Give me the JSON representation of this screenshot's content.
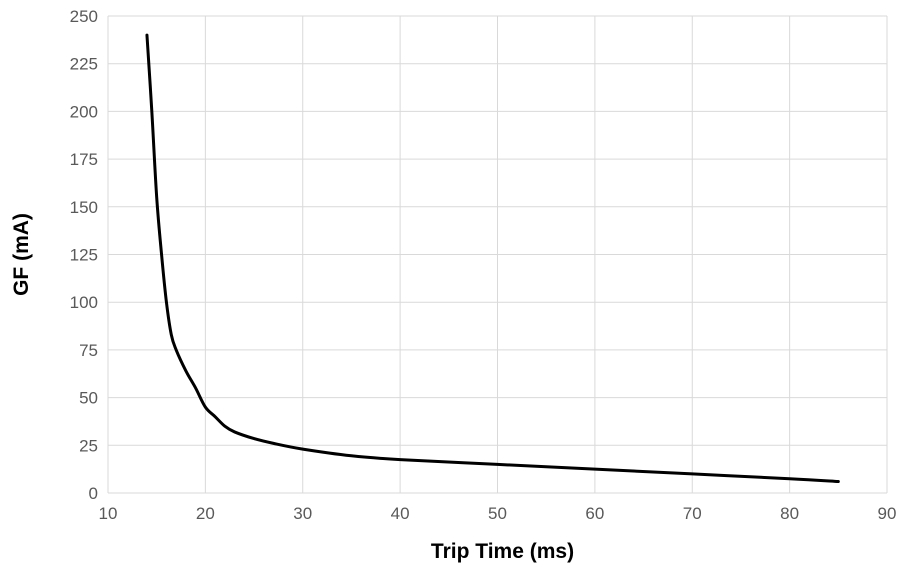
{
  "chart_data": {
    "type": "line",
    "xlabel": "Trip Time (ms)",
    "ylabel": "GF (mA)",
    "xlim": [
      10,
      90
    ],
    "ylim": [
      0,
      250
    ],
    "x_ticks": [
      "10",
      "20",
      "30",
      "40",
      "50",
      "60",
      "70",
      "80",
      "90"
    ],
    "y_ticks": [
      "0",
      "25",
      "50",
      "75",
      "100",
      "125",
      "150",
      "175",
      "200",
      "225",
      "250"
    ],
    "grid": true,
    "legend": "none",
    "series": [
      {
        "color": "#000000",
        "x": [
          14,
          14.5,
          15,
          15.5,
          16,
          16.5,
          17,
          18,
          19,
          20,
          21,
          22,
          23,
          25,
          27,
          30,
          35,
          40,
          50,
          60,
          70,
          80,
          85
        ],
        "y": [
          240,
          200,
          155,
          125,
          100,
          83,
          75,
          64,
          55,
          45,
          40,
          35,
          32,
          28.5,
          26,
          23,
          19.5,
          17.5,
          15,
          12.5,
          10,
          7.5,
          6
        ]
      }
    ]
  }
}
